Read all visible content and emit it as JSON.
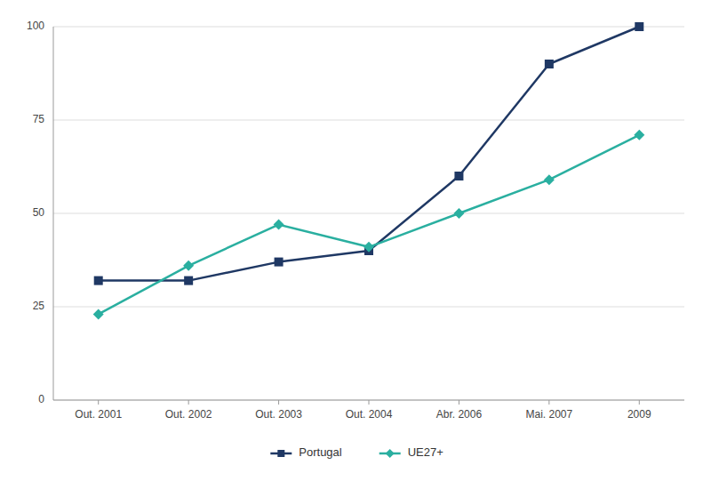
{
  "chart_data": {
    "type": "line",
    "categories": [
      "Out. 2001",
      "Out. 2002",
      "Out. 2003",
      "Out. 2004",
      "Abr. 2006",
      "Mai. 2007",
      "2009"
    ],
    "series": [
      {
        "name": "Portugal",
        "color": "#1F3864",
        "marker": "square",
        "values": [
          32,
          32,
          37,
          40,
          60,
          90,
          100
        ]
      },
      {
        "name": "UE27+",
        "color": "#2AAFA0",
        "marker": "diamond",
        "values": [
          23,
          36,
          47,
          41,
          50,
          59,
          71
        ]
      }
    ],
    "ylim": [
      0,
      100
    ],
    "yticks": [
      0,
      25,
      50,
      75,
      100
    ],
    "grid": true,
    "legend": "bottom"
  }
}
